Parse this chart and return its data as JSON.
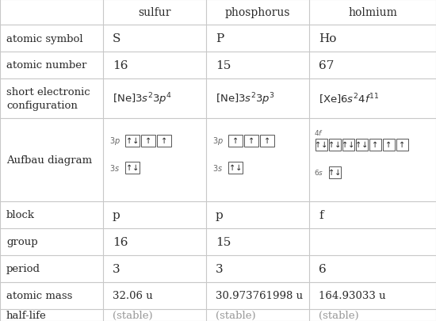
{
  "col_headers": [
    "",
    "sulfur",
    "phosphorus",
    "holmium"
  ],
  "sulfur": {
    "symbol": "S",
    "number": "16",
    "block": "p",
    "group": "16",
    "period": "3",
    "mass": "32.06 u",
    "halflife": "(stable)",
    "aufbau_3p": [
      "ud",
      "u",
      "u"
    ],
    "aufbau_3s": [
      "ud"
    ]
  },
  "phosphorus": {
    "symbol": "P",
    "number": "15",
    "block": "p",
    "group": "15",
    "period": "3",
    "mass": "30.973761998 u",
    "halflife": "(stable)",
    "aufbau_3p": [
      "u",
      "u",
      "u"
    ],
    "aufbau_3s": [
      "ud"
    ]
  },
  "holmium": {
    "symbol": "Ho",
    "number": "67",
    "block": "f",
    "group": "",
    "period": "6",
    "mass": "164.93033 u",
    "halflife": "(stable)",
    "aufbau_4f": [
      "ud",
      "ud",
      "ud",
      "ud",
      "u",
      "u",
      "u"
    ],
    "aufbau_6s": [
      "ud"
    ]
  },
  "bg_color": "#ffffff",
  "grid_color": "#c8c8c8",
  "text_color": "#2b2b2b",
  "stable_color": "#999999",
  "arrow_up": "↑",
  "arrow_down": "↓"
}
